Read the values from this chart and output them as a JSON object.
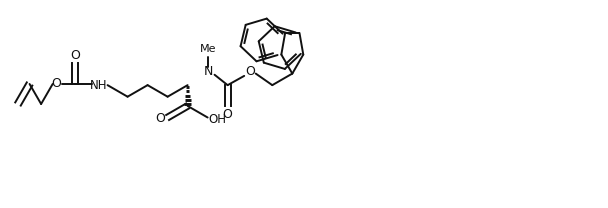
{
  "background": "#ffffff",
  "line_color": "#111111",
  "line_width": 1.4,
  "figsize": [
    6.08,
    2.08
  ],
  "dpi": 100,
  "xlim": [
    0,
    10.5
  ],
  "ylim": [
    0.0,
    3.6
  ]
}
